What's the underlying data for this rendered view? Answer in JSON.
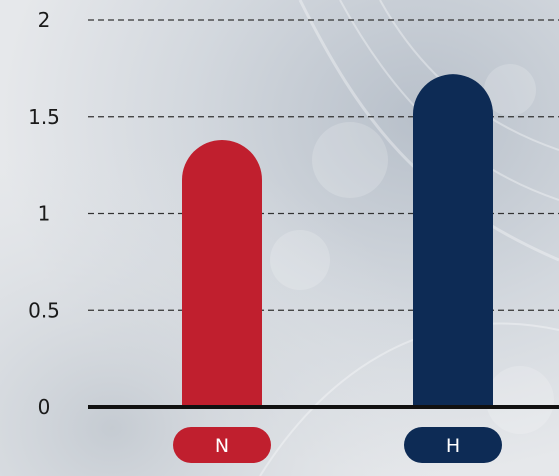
{
  "chart_data": {
    "type": "bar",
    "categories": [
      "N",
      "H"
    ],
    "values": [
      1.38,
      1.72
    ],
    "ylim": [
      0,
      2
    ],
    "yticks": [
      "0",
      "0.5",
      "1",
      "1.5",
      "2"
    ],
    "grid": true,
    "colors": {
      "N": "#c01f2e",
      "H": "#0d2b55",
      "axis": "#111111",
      "grid": "#333333"
    }
  }
}
